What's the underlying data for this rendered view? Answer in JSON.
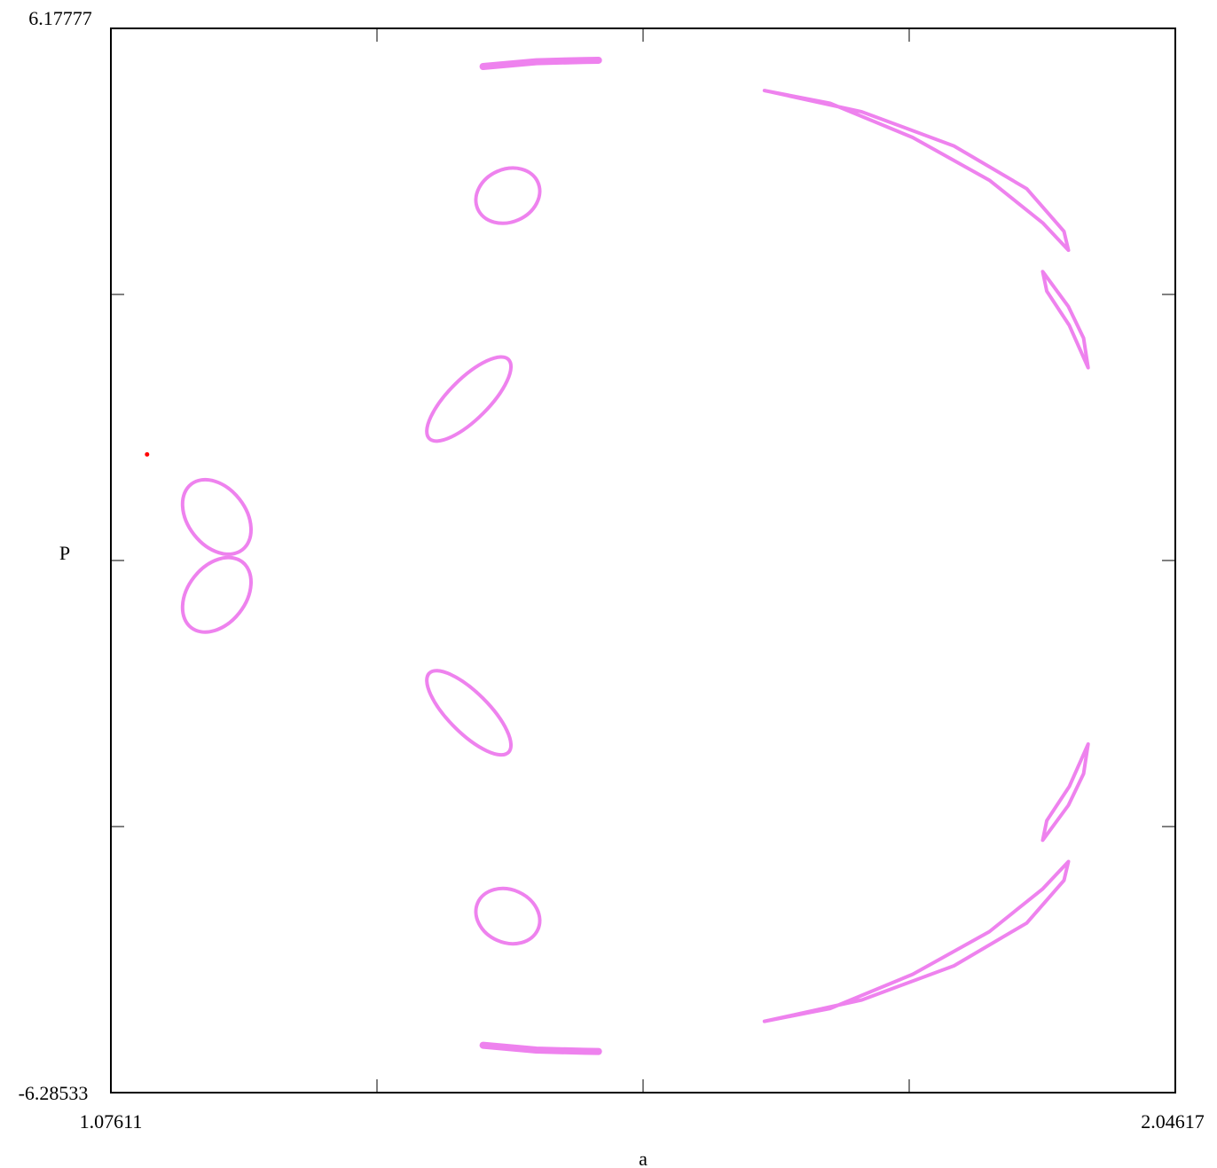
{
  "chart_data": {
    "type": "scatter",
    "title": "",
    "xlabel": "a",
    "ylabel": "P",
    "xlim": [
      1.07611,
      2.04617
    ],
    "ylim": [
      -6.28533,
      6.17777
    ],
    "x_tick_labels": [
      "1.07611",
      "2.04617"
    ],
    "y_tick_labels": [
      "6.17777",
      "-6.28533"
    ],
    "grid": false,
    "legend": "none",
    "colors": {
      "orbit": "#ee82ee",
      "fixed_point": "#ff0000"
    },
    "fixed_point": {
      "x": 1.1091,
      "y": 1.1881
    },
    "features": [
      {
        "name": "lobe-upper-left",
        "kind": "ellipse",
        "center": [
          1.1726,
          0.4558
        ],
        "radii": [
          0.0263,
          0.4868
        ],
        "rotation_deg": -38
      },
      {
        "name": "lobe-lower-left",
        "kind": "ellipse",
        "center": [
          1.1726,
          -0.4558
        ],
        "radii": [
          0.0263,
          0.4868
        ],
        "rotation_deg": 38
      },
      {
        "name": "island-top-bar",
        "kind": "arc",
        "points": [
          [
            1.4153,
            5.7307
          ],
          [
            1.4638,
            5.7873
          ],
          [
            1.5075,
            5.8018
          ],
          [
            1.5205,
            5.8036
          ]
        ]
      },
      {
        "name": "island-top-loop",
        "kind": "ellipse",
        "center": [
          1.4379,
          4.2188
        ],
        "radii": [
          0.03,
          0.31
        ],
        "rotation_deg": -24
      },
      {
        "name": "island-upper-mid",
        "kind": "ellipse",
        "center": [
          1.4024,
          1.837
        ],
        "radii": [
          0.0184,
          0.655
        ],
        "rotation_deg": 45
      },
      {
        "name": "island-lower-mid",
        "kind": "ellipse",
        "center": [
          1.4024,
          -1.837
        ],
        "radii": [
          0.0184,
          0.655
        ],
        "rotation_deg": -45
      },
      {
        "name": "island-bottom-loop",
        "kind": "ellipse",
        "center": [
          1.4379,
          -4.2188
        ],
        "radii": [
          0.03,
          0.31
        ],
        "rotation_deg": 24
      },
      {
        "name": "island-bottom-bar",
        "kind": "arc",
        "points": [
          [
            1.4153,
            -5.7307
          ],
          [
            1.4638,
            -5.7873
          ],
          [
            1.5075,
            -5.8018
          ],
          [
            1.5205,
            -5.8036
          ]
        ]
      },
      {
        "name": "crescent-upper-right",
        "kind": "crescent",
        "outer": [
          [
            1.6717,
            5.45
          ],
          [
            1.7605,
            5.2
          ],
          [
            1.8445,
            4.8001
          ],
          [
            1.9108,
            4.2999
          ],
          [
            1.9447,
            3.8001
          ],
          [
            1.9488,
            3.5799
          ]
        ],
        "inner": [
          [
            1.9488,
            3.5799
          ],
          [
            1.9253,
            3.9002
          ],
          [
            1.8767,
            4.3999
          ],
          [
            1.8068,
            4.8999
          ],
          [
            1.7316,
            5.3
          ],
          [
            1.6717,
            5.45
          ]
        ]
      },
      {
        "name": "crescent-right-upper",
        "kind": "crescent",
        "outer": [
          [
            1.9253,
            3.3299
          ],
          [
            1.9488,
            2.9202
          ],
          [
            1.9626,
            2.5504
          ],
          [
            1.9667,
            2.204
          ]
        ],
        "inner": [
          [
            1.9667,
            2.204
          ],
          [
            1.9496,
            2.6997
          ],
          [
            1.929,
            3.1003
          ],
          [
            1.9253,
            3.3299
          ]
        ]
      },
      {
        "name": "crescent-right-lower",
        "kind": "crescent",
        "outer": [
          [
            1.9253,
            -3.3299
          ],
          [
            1.9488,
            -2.9202
          ],
          [
            1.9626,
            -2.5504
          ],
          [
            1.9667,
            -2.204
          ]
        ],
        "inner": [
          [
            1.9667,
            -2.204
          ],
          [
            1.9496,
            -2.6997
          ],
          [
            1.929,
            -3.1003
          ],
          [
            1.9253,
            -3.3299
          ]
        ]
      },
      {
        "name": "crescent-lower-right",
        "kind": "crescent",
        "outer": [
          [
            1.6717,
            -5.45
          ],
          [
            1.7605,
            -5.2
          ],
          [
            1.8445,
            -4.8001
          ],
          [
            1.9108,
            -4.2999
          ],
          [
            1.9447,
            -3.8001
          ],
          [
            1.9488,
            -3.5799
          ]
        ],
        "inner": [
          [
            1.9488,
            -3.5799
          ],
          [
            1.9253,
            -3.9002
          ],
          [
            1.8767,
            -4.3999
          ],
          [
            1.8068,
            -4.8999
          ],
          [
            1.7316,
            -5.3
          ],
          [
            1.6717,
            -5.45
          ]
        ]
      }
    ]
  }
}
